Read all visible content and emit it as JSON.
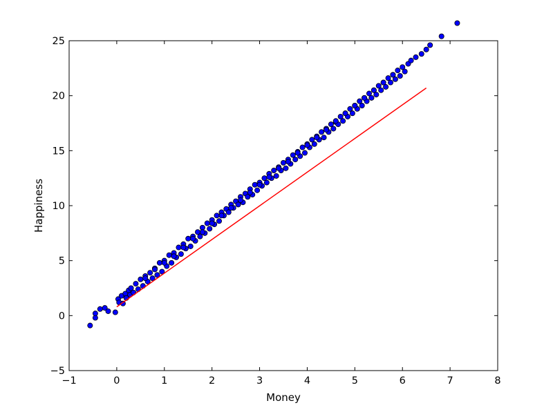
{
  "chart_data": {
    "type": "scatter",
    "xlabel": "Money",
    "ylabel": "Happiness",
    "xlim": [
      -1,
      8
    ],
    "ylim": [
      -5,
      25
    ],
    "xticks": [
      -1,
      0,
      1,
      2,
      3,
      4,
      5,
      6,
      7,
      8
    ],
    "yticks": [
      -5,
      0,
      5,
      10,
      15,
      20,
      25
    ],
    "grid": false,
    "colors": {
      "points": "#0000ff",
      "point_edge": "#000000",
      "fit_line": "#ff0000"
    },
    "series": [
      {
        "type": "scatter",
        "x": [
          -0.56,
          -0.45,
          -0.45,
          -0.35,
          -0.25,
          -0.18,
          -0.03,
          0.03,
          0.05,
          0.1,
          0.13,
          0.18,
          0.2,
          0.25,
          0.28,
          0.3,
          0.35,
          0.4,
          0.45,
          0.5,
          0.55,
          0.6,
          0.65,
          0.7,
          0.75,
          0.8,
          0.85,
          0.9,
          0.95,
          1.0,
          1.05,
          1.1,
          1.15,
          1.2,
          1.25,
          1.3,
          1.35,
          1.4,
          1.45,
          1.5,
          1.55,
          1.6,
          1.65,
          1.7,
          1.75,
          1.8,
          1.85,
          1.9,
          1.95,
          2.0,
          2.05,
          2.1,
          2.15,
          2.2,
          2.25,
          2.3,
          2.35,
          2.4,
          2.45,
          2.5,
          2.55,
          2.6,
          2.65,
          2.7,
          2.75,
          2.8,
          2.85,
          2.9,
          2.95,
          3.0,
          3.05,
          3.1,
          3.15,
          3.2,
          3.25,
          3.3,
          3.35,
          3.4,
          3.45,
          3.5,
          3.55,
          3.6,
          3.65,
          3.7,
          3.75,
          3.8,
          3.85,
          3.9,
          3.95,
          4.0,
          4.05,
          4.1,
          4.15,
          4.2,
          4.25,
          4.3,
          4.35,
          4.4,
          4.45,
          4.5,
          4.55,
          4.6,
          4.65,
          4.7,
          4.75,
          4.8,
          4.85,
          4.9,
          4.95,
          5.0,
          5.05,
          5.1,
          5.15,
          5.2,
          5.25,
          5.3,
          5.35,
          5.4,
          5.45,
          5.5,
          5.55,
          5.6,
          5.65,
          5.7,
          5.75,
          5.8,
          5.85,
          5.9,
          5.95,
          6.0,
          6.05,
          6.12,
          6.18,
          6.28,
          6.4,
          6.5,
          6.58,
          6.82,
          7.15,
          0.6,
          1.0,
          1.4,
          1.8,
          2.2,
          2.6,
          3.0,
          3.4,
          3.8,
          4.2,
          4.6,
          5.0,
          5.4,
          5.8,
          0.8,
          1.2,
          1.6,
          2.0,
          2.4,
          2.8,
          3.2,
          3.6,
          4.0,
          4.4,
          4.8,
          5.2,
          5.6
        ],
        "y": [
          -0.9,
          -0.2,
          0.2,
          0.6,
          0.7,
          0.4,
          0.3,
          1.5,
          1.2,
          1.8,
          1.1,
          2.0,
          1.6,
          2.3,
          1.9,
          2.5,
          2.1,
          2.9,
          2.4,
          3.3,
          2.7,
          3.6,
          3.1,
          3.9,
          3.4,
          4.3,
          3.7,
          4.8,
          4.0,
          5.0,
          4.5,
          5.5,
          4.8,
          5.7,
          5.3,
          6.2,
          5.6,
          6.5,
          6.1,
          7.0,
          6.3,
          7.2,
          6.8,
          7.6,
          7.2,
          8.0,
          7.5,
          8.4,
          7.9,
          8.7,
          8.3,
          9.1,
          8.6,
          9.4,
          9.1,
          9.7,
          9.4,
          10.1,
          9.8,
          10.4,
          10.1,
          10.8,
          10.3,
          11.1,
          10.8,
          11.5,
          11.0,
          11.9,
          11.4,
          12.1,
          11.8,
          12.5,
          12.1,
          12.9,
          12.5,
          13.2,
          12.7,
          13.5,
          13.2,
          13.9,
          13.4,
          14.2,
          13.8,
          14.6,
          14.2,
          14.9,
          14.5,
          15.3,
          14.8,
          15.6,
          15.3,
          16.0,
          15.6,
          16.3,
          16.0,
          16.7,
          16.2,
          17.0,
          16.7,
          17.4,
          17.0,
          17.6,
          17.4,
          18.1,
          17.7,
          18.4,
          18.1,
          18.8,
          18.4,
          19.1,
          18.8,
          19.5,
          19.1,
          19.8,
          19.5,
          20.2,
          19.8,
          20.5,
          20.1,
          20.9,
          20.5,
          21.2,
          20.8,
          21.6,
          21.2,
          21.9,
          21.5,
          22.3,
          21.8,
          22.6,
          22.2,
          22.9,
          23.2,
          23.5,
          23.8,
          24.2,
          24.6,
          25.4,
          26.6,
          3.4,
          4.8,
          6.2,
          7.6,
          9.1,
          10.5,
          11.9,
          13.4,
          14.8,
          16.2,
          17.7,
          19.1,
          20.5,
          21.9,
          4.2,
          5.4,
          7.0,
          8.4,
          9.8,
          11.2,
          12.6,
          14.0,
          15.5,
          16.9,
          18.4,
          19.8,
          21.2
        ]
      },
      {
        "type": "line",
        "name": "",
        "x": [
          0.0,
          6.5
        ],
        "y": [
          0.8,
          20.7
        ]
      }
    ]
  }
}
